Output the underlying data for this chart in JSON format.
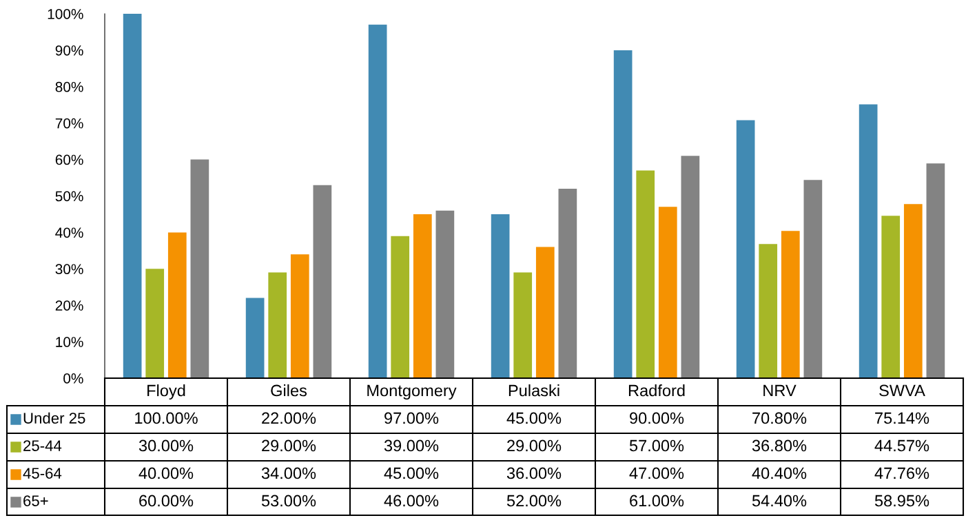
{
  "chart_data": {
    "type": "bar",
    "categories": [
      "Floyd",
      "Giles",
      "Montgomery",
      "Pulaski",
      "Radford",
      "NRV",
      "SWVA"
    ],
    "series": [
      {
        "name": "Under 25",
        "color": "#418ab3",
        "values": [
          100,
          22,
          97,
          45,
          90,
          70.8,
          75.14
        ],
        "value_labels": [
          "100.00%",
          "22.00%",
          "97.00%",
          "45.00%",
          "90.00%",
          "70.80%",
          "75.14%"
        ]
      },
      {
        "name": "25-44",
        "color": "#a6b727",
        "values": [
          30,
          29,
          39,
          29,
          57,
          36.8,
          44.57
        ],
        "value_labels": [
          "30.00%",
          "29.00%",
          "39.00%",
          "29.00%",
          "57.00%",
          "36.80%",
          "44.57%"
        ]
      },
      {
        "name": "45-64",
        "color": "#f59201",
        "values": [
          40,
          34,
          45,
          36,
          47,
          40.4,
          47.76
        ],
        "value_labels": [
          "40.00%",
          "34.00%",
          "45.00%",
          "36.00%",
          "47.00%",
          "40.40%",
          "47.76%"
        ]
      },
      {
        "name": "65+",
        "color": "#838383",
        "values": [
          60,
          53,
          46,
          52,
          61,
          54.4,
          58.95
        ],
        "value_labels": [
          "60.00%",
          "53.00%",
          "46.00%",
          "52.00%",
          "61.00%",
          "54.40%",
          "58.95%"
        ]
      }
    ],
    "ylim": [
      0,
      100
    ],
    "yticks": [
      {
        "value": 0,
        "label": "0%"
      },
      {
        "value": 10,
        "label": "10%"
      },
      {
        "value": 20,
        "label": "20%"
      },
      {
        "value": 30,
        "label": "30%"
      },
      {
        "value": 40,
        "label": "40%"
      },
      {
        "value": 50,
        "label": "50%"
      },
      {
        "value": 60,
        "label": "60%"
      },
      {
        "value": 70,
        "label": "70%"
      },
      {
        "value": 80,
        "label": "80%"
      },
      {
        "value": 90,
        "label": "90%"
      },
      {
        "value": 100,
        "label": "100%"
      }
    ],
    "grid": false,
    "legend": "bottom left"
  }
}
